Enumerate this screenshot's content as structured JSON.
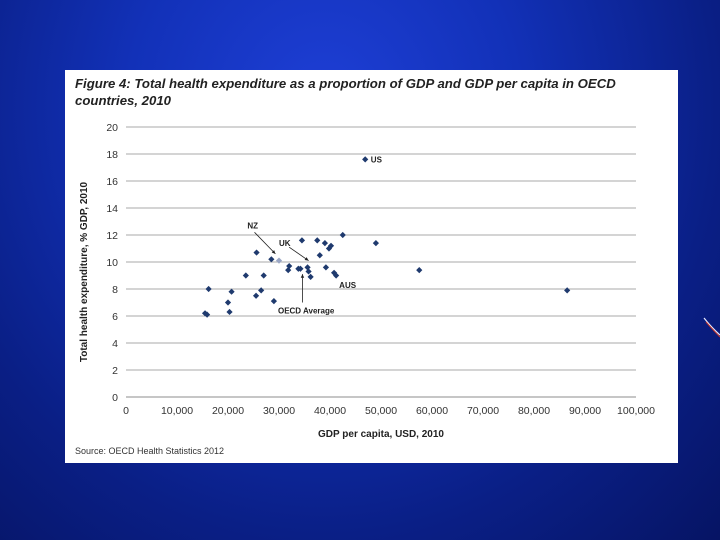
{
  "slide": {
    "background_color": "#1231b8",
    "panel_color": "#ffffff"
  },
  "figure": {
    "title": "Figure 4: Total health expenditure as a proportion of GDP and GDP per capita in OECD countries, 2010",
    "source": "Source:  OECD Health Statistics 2012"
  },
  "chart_data": {
    "type": "scatter",
    "title": "Figure 4: Total health expenditure as a proportion of GDP and GDP per capita in OECD countries, 2010",
    "xlabel": "GDP per capita, USD, 2010",
    "ylabel": "Total health expenditure, % GDP, 2010",
    "xlim": [
      0,
      100000
    ],
    "ylim": [
      0,
      20
    ],
    "xticks": [
      0,
      10000,
      20000,
      30000,
      40000,
      50000,
      60000,
      70000,
      80000,
      90000,
      100000
    ],
    "xtick_labels": [
      "0",
      "10,000",
      "20,000",
      "30,000",
      "40,000",
      "50,000",
      "60,000",
      "70,000",
      "80,000",
      "90,000",
      "100,000"
    ],
    "yticks": [
      0,
      2,
      4,
      6,
      8,
      10,
      12,
      14,
      16,
      18,
      20
    ],
    "ytick_labels": [
      "0",
      "2",
      "4",
      "6",
      "8",
      "10",
      "12",
      "14",
      "16",
      "18",
      "20"
    ],
    "grid": "horizontal",
    "marker_color": "#1f3a6e",
    "highlight_color": "#9aa6c4",
    "points": [
      {
        "x": 15500,
        "y": 6.2
      },
      {
        "x": 15900,
        "y": 6.1
      },
      {
        "x": 16200,
        "y": 8.0
      },
      {
        "x": 20000,
        "y": 7.0
      },
      {
        "x": 20300,
        "y": 6.3
      },
      {
        "x": 20700,
        "y": 7.8
      },
      {
        "x": 23500,
        "y": 9.0
      },
      {
        "x": 25500,
        "y": 7.5
      },
      {
        "x": 25600,
        "y": 10.7
      },
      {
        "x": 26500,
        "y": 7.9
      },
      {
        "x": 27000,
        "y": 9.0
      },
      {
        "x": 28500,
        "y": 10.2
      },
      {
        "x": 29000,
        "y": 7.1
      },
      {
        "x": 31800,
        "y": 9.4
      },
      {
        "x": 32000,
        "y": 9.7
      },
      {
        "x": 33800,
        "y": 9.5
      },
      {
        "x": 34200,
        "y": 9.5
      },
      {
        "x": 34500,
        "y": 11.6
      },
      {
        "x": 35600,
        "y": 9.6
      },
      {
        "x": 35800,
        "y": 9.3
      },
      {
        "x": 36200,
        "y": 8.9
      },
      {
        "x": 37500,
        "y": 11.6
      },
      {
        "x": 38000,
        "y": 10.5
      },
      {
        "x": 39000,
        "y": 11.4
      },
      {
        "x": 39200,
        "y": 9.6
      },
      {
        "x": 39800,
        "y": 11.0
      },
      {
        "x": 40200,
        "y": 11.2
      },
      {
        "x": 40800,
        "y": 9.2
      },
      {
        "x": 41200,
        "y": 9.0
      },
      {
        "x": 42500,
        "y": 12.0
      },
      {
        "x": 46900,
        "y": 17.6
      },
      {
        "x": 49000,
        "y": 11.4
      },
      {
        "x": 57500,
        "y": 9.4
      },
      {
        "x": 86500,
        "y": 7.9
      },
      {
        "x": 30000,
        "y": 10.1,
        "highlight": true
      }
    ],
    "annotations": [
      {
        "text": "US",
        "x": 48000,
        "y": 17.6
      },
      {
        "text": "NZ",
        "x": 23800,
        "y": 12.7
      },
      {
        "text": "UK",
        "x": 30000,
        "y": 11.4
      },
      {
        "text": "AUS",
        "x": 41800,
        "y": 8.3
      },
      {
        "text": "OECD Average",
        "x": 29800,
        "y": 6.4
      }
    ]
  }
}
